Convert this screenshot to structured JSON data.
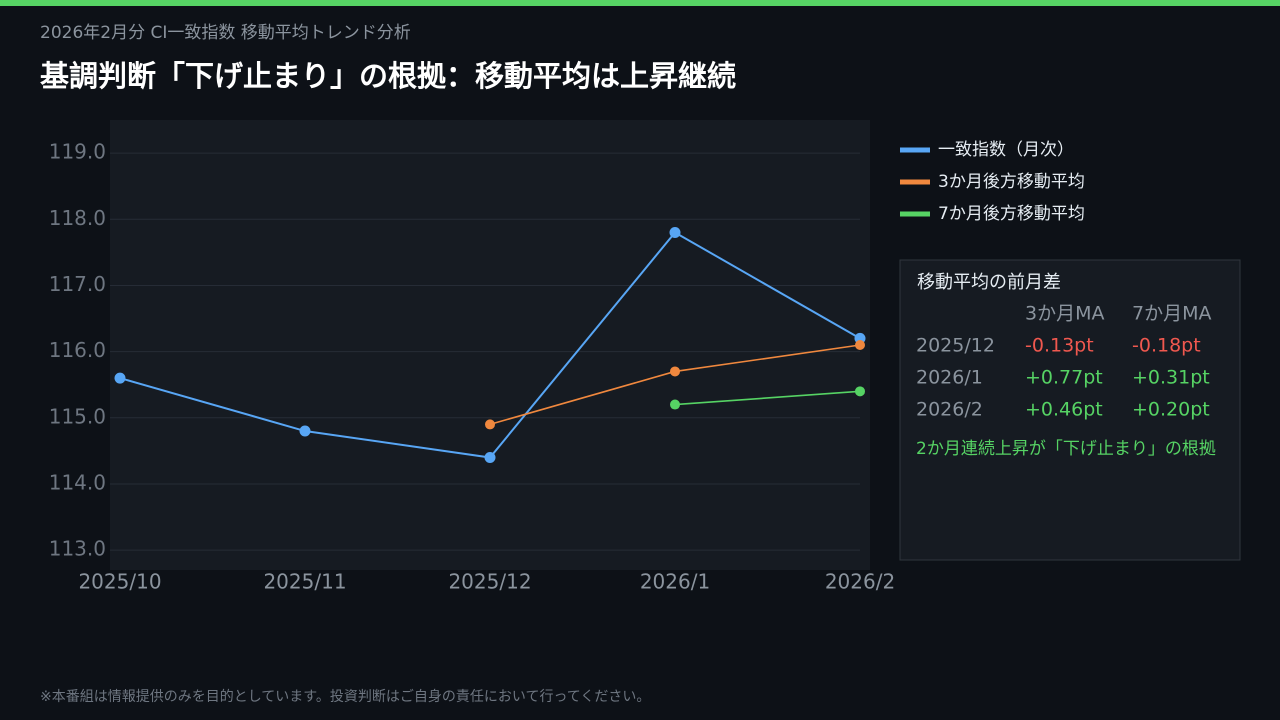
{
  "header": {
    "subtitle": "2026年2月分  CI一致指数  移動平均トレンド分析",
    "title": "基調判断「下げ止まり」の根拠：移動平均は上昇継続"
  },
  "chart_data": {
    "type": "line",
    "categories": [
      "2025/10",
      "2025/11",
      "2025/12",
      "2026/1",
      "2026/2"
    ],
    "series": [
      {
        "name": "一致指数（月次）",
        "color": "#58a6f5",
        "values": [
          115.6,
          114.8,
          114.4,
          117.8,
          116.2
        ]
      },
      {
        "name": "3か月後方移動平均",
        "color": "#f0883e",
        "values": [
          null,
          null,
          114.9,
          115.7,
          116.1
        ]
      },
      {
        "name": "7か月後方移動平均",
        "color": "#56d364",
        "values": [
          null,
          null,
          null,
          115.2,
          115.4
        ]
      }
    ],
    "ylim": [
      112.7,
      119.5
    ],
    "yticks": [
      {
        "value": 113,
        "label": "113.0"
      },
      {
        "value": 114,
        "label": "114.0"
      },
      {
        "value": 115,
        "label": "115.0"
      },
      {
        "value": 116,
        "label": "116.0"
      },
      {
        "value": 117,
        "label": "117.0"
      },
      {
        "value": 118,
        "label": "118.0"
      },
      {
        "value": 119,
        "label": "119.0"
      }
    ],
    "grid": true
  },
  "table": {
    "title": "移動平均の前月差",
    "headers": [
      "3か月MA",
      "7か月MA"
    ],
    "rows": [
      {
        "label": "2025/12",
        "cells": [
          "-0.13pt",
          "-0.18pt"
        ],
        "color": "#f0584f"
      },
      {
        "label": "2026/1",
        "cells": [
          "+0.77pt",
          "+0.31pt"
        ],
        "color": "#56d364"
      },
      {
        "label": "2026/2",
        "cells": [
          "+0.46pt",
          "+0.20pt"
        ],
        "color": "#56d364"
      }
    ],
    "note": "2か月連続上昇が「下げ止まり」の根拠"
  },
  "footer": "※本番組は情報提供のみを目的としています。投資判断はご自身の責任において行ってください。"
}
